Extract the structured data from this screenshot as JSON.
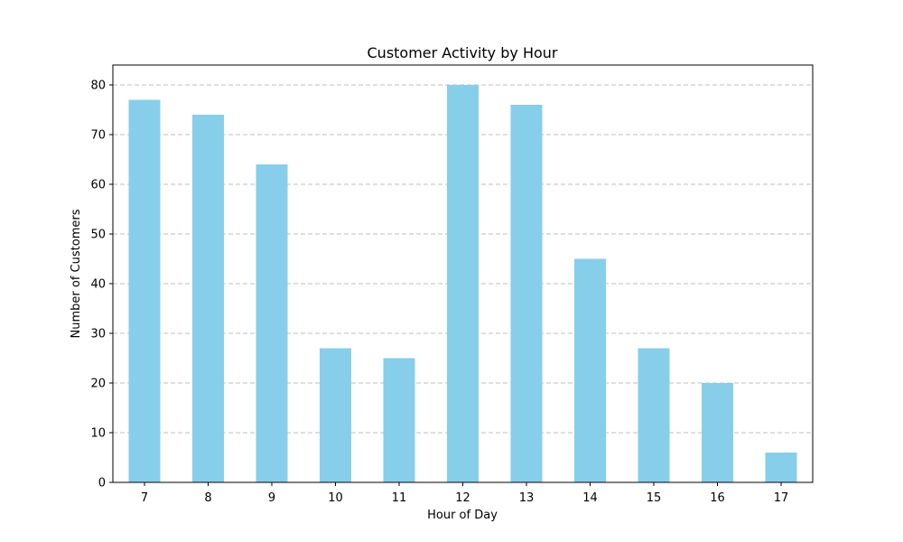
{
  "chart_data": {
    "type": "bar",
    "title": "Customer Activity by Hour",
    "xlabel": "Hour of Day",
    "ylabel": "Number of Customers",
    "categories": [
      "7",
      "8",
      "9",
      "10",
      "11",
      "12",
      "13",
      "14",
      "15",
      "16",
      "17"
    ],
    "values": [
      77,
      74,
      64,
      27,
      25,
      80,
      76,
      45,
      27,
      20,
      6
    ],
    "ylim": [
      0,
      84
    ],
    "yticks": [
      0,
      10,
      20,
      30,
      40,
      50,
      60,
      70,
      80
    ],
    "grid": "y-axis dashed",
    "bar_color": "#87CEEB",
    "grid_color": "#bfbfbf"
  }
}
